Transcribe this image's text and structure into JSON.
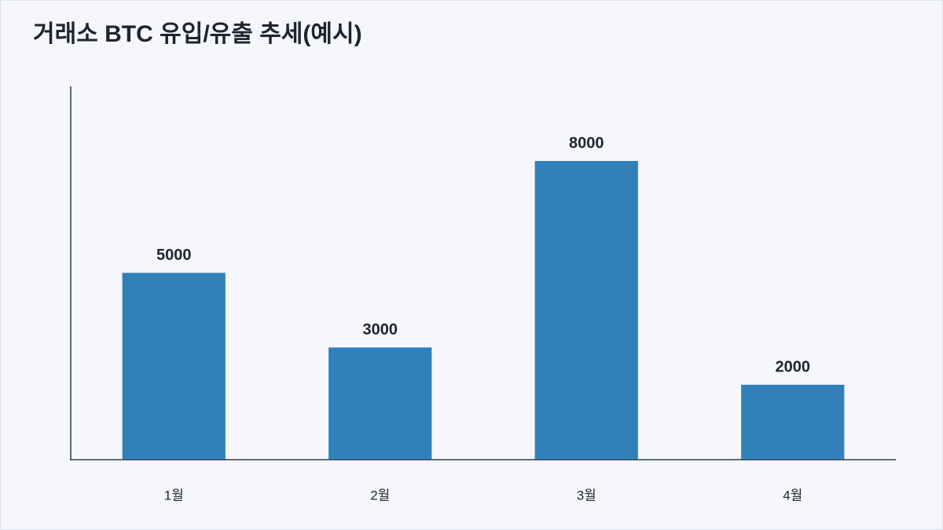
{
  "chart_data": {
    "type": "bar",
    "title": "거래소 BTC 유입/유출 추세(예시)",
    "categories": [
      "1월",
      "2월",
      "3월",
      "4월"
    ],
    "values": [
      5000,
      3000,
      8000,
      2000
    ],
    "color": "#3180b9",
    "ylim": [
      0,
      10000
    ]
  }
}
